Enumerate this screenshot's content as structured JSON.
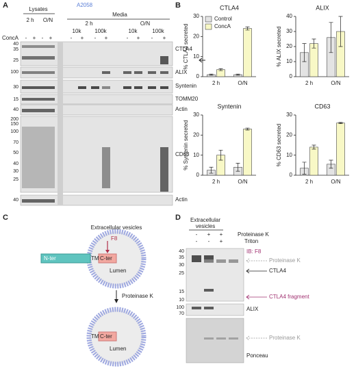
{
  "panel_a": {
    "letter": "A",
    "cell_line": "A2058",
    "lysates": "Lysates",
    "media": "Media",
    "lysate_times": [
      "2 h",
      "O/N"
    ],
    "media_times": [
      "2 h",
      "O/N"
    ],
    "fractions": [
      "10k",
      "100k",
      "10k",
      "100k"
    ],
    "treatment": "ConcA",
    "signs": [
      "-",
      "+",
      "-",
      "+",
      "-",
      "+",
      "-",
      "+",
      "-",
      "+",
      "-",
      "+"
    ],
    "markers": [
      40,
      35,
      25,
      100,
      30,
      15,
      40,
      200,
      150,
      100,
      70,
      50,
      40,
      30,
      25,
      40
    ],
    "blot_labels": [
      "CTLA4",
      "ALIX",
      "Syntenin",
      "TOMM20",
      "Actin",
      "CD63",
      "Actin"
    ]
  },
  "panel_b": {
    "letter": "B"
  },
  "chart_data": [
    {
      "type": "bar",
      "title": "CTLA4",
      "ylabel": "% CTLA4 secreted",
      "categories": [
        "2 h",
        "O/N"
      ],
      "series": [
        {
          "name": "Control",
          "color": "#e3e3e3",
          "values": [
            1,
            1
          ],
          "errors": [
            0.3,
            0.3
          ]
        },
        {
          "name": "ConcA",
          "color": "#f8f8c6",
          "values": [
            3.5,
            24
          ],
          "errors": [
            0.5,
            0.8
          ]
        }
      ],
      "ylim": [
        0,
        30
      ],
      "yticks": [
        0,
        10,
        20,
        30
      ],
      "legend": "upper left"
    },
    {
      "type": "bar",
      "title": "ALIX",
      "ylabel": "% ALIX secreted",
      "categories": [
        "2 h",
        "O/N"
      ],
      "series": [
        {
          "color": "#e3e3e3",
          "values": [
            16,
            26
          ],
          "errors": [
            6,
            10
          ]
        },
        {
          "color": "#f8f8c6",
          "values": [
            22,
            30
          ],
          "errors": [
            3,
            10
          ]
        }
      ],
      "ylim": [
        0,
        40
      ],
      "yticks": [
        0,
        10,
        20,
        30,
        40
      ]
    },
    {
      "type": "bar",
      "title": "Syntenin",
      "ylabel": "% Syntenin secreted",
      "categories": [
        "2 h",
        "O/N"
      ],
      "series": [
        {
          "color": "#e3e3e3",
          "values": [
            2.5,
            4
          ],
          "errors": [
            1.5,
            2
          ]
        },
        {
          "color": "#f8f8c6",
          "values": [
            10,
            23
          ],
          "errors": [
            2.5,
            0.5
          ]
        }
      ],
      "ylim": [
        0,
        30
      ],
      "yticks": [
        0,
        10,
        20,
        30
      ]
    },
    {
      "type": "bar",
      "title": "CD63",
      "ylabel": "% CD63 secreted",
      "categories": [
        "2 h",
        "O/N"
      ],
      "series": [
        {
          "color": "#e3e3e3",
          "values": [
            3.5,
            5.5
          ],
          "errors": [
            3,
            2
          ]
        },
        {
          "color": "#f8f8c6",
          "values": [
            14,
            26
          ],
          "errors": [
            1,
            0.3
          ]
        }
      ],
      "ylim": [
        0,
        30
      ],
      "yticks": [
        0,
        10,
        20,
        30
      ]
    }
  ],
  "panel_c": {
    "letter": "C",
    "title": "Extracellular vesicles",
    "epitope": "F8",
    "n_ter": "N-ter",
    "tm": "TM",
    "c_ter": "C-ter",
    "lumen": "Lumen",
    "treatment": "Proteinase K",
    "after": {
      "tm": "TM",
      "c_ter": "C-ter",
      "lumen": "Lumen"
    }
  },
  "panel_d": {
    "letter": "D",
    "sample": [
      "Extracellular",
      "vesicles"
    ],
    "treatments": [
      {
        "name": "Proteinase K",
        "signs": [
          "-",
          "+",
          "+"
        ]
      },
      {
        "name": "Triton",
        "signs": [
          "-",
          "-",
          "+"
        ]
      }
    ],
    "antibody": "IB: F8",
    "markers": [
      40,
      35,
      30,
      25,
      15,
      10,
      100,
      70
    ],
    "band_labels": [
      "Proteinase K",
      "CTLA4",
      "CTLA4 fragment"
    ],
    "blot_labels": [
      "ALIX",
      "Proteinase K",
      "Ponceau"
    ]
  }
}
